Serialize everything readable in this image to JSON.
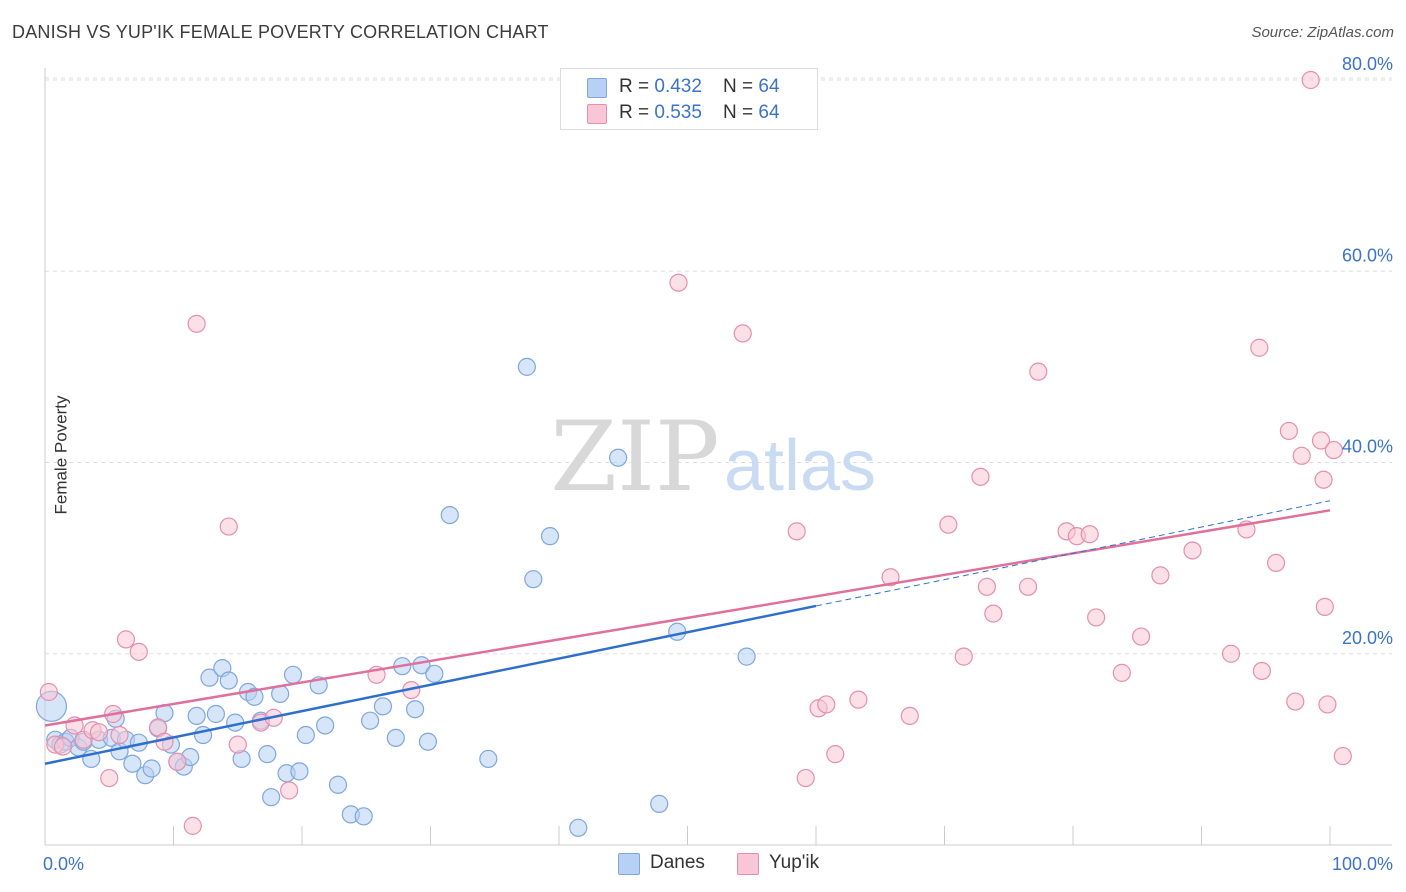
{
  "title": "DANISH VS YUP'IK FEMALE POVERTY CORRELATION CHART",
  "source": "Source: ZipAtlas.com",
  "watermark": {
    "zip": "ZIP",
    "atlas": "atlas"
  },
  "legend_top": {
    "rows": [
      {
        "r_label": "R = ",
        "r_value": "0.432",
        "n_label": "N = ",
        "n_value": "64"
      },
      {
        "r_label": "R = ",
        "r_value": "0.535",
        "n_label": "N = ",
        "n_value": "64"
      }
    ]
  },
  "colors": {
    "danes_fill": "#b7d0f3",
    "danes_stroke": "#7fa7dd",
    "danes_line": "#2f6fcc",
    "yupik_fill": "#f8c6d6",
    "yupik_stroke": "#e58fae",
    "yupik_line": "#e0709a",
    "axis_label": "#3a73c9",
    "grid": "#dddddd"
  },
  "chart_data": {
    "type": "scatter",
    "title": "DANISH VS YUP'IK FEMALE POVERTY CORRELATION CHART",
    "xlabel": "",
    "ylabel": "Female Poverty",
    "xlim": [
      0,
      100
    ],
    "ylim": [
      0,
      83
    ],
    "x_ticks": [
      "0.0%",
      "100.0%"
    ],
    "y_ticks": [
      {
        "value": 20,
        "label": "20.0%"
      },
      {
        "value": 40,
        "label": "40.0%"
      },
      {
        "value": 60,
        "label": "60.0%"
      },
      {
        "value": 80,
        "label": "80.0%"
      }
    ],
    "grid": true,
    "legend_position": "bottom",
    "series": [
      {
        "name": "Danes",
        "r": 0.432,
        "n": 64,
        "trend": {
          "x0": 0,
          "y0": 8.5,
          "x1": 60,
          "y1": 25.0,
          "dash_to_x": 100,
          "dash_to_y": 36.0
        },
        "points": [
          [
            0.5,
            14.5
          ],
          [
            0.8,
            11.0
          ],
          [
            1.2,
            10.5
          ],
          [
            1.6,
            10.8
          ],
          [
            2.0,
            11.2
          ],
          [
            2.6,
            10.2
          ],
          [
            3.0,
            10.8
          ],
          [
            3.6,
            9.0
          ],
          [
            4.2,
            11.0
          ],
          [
            5.2,
            11.2
          ],
          [
            5.5,
            13.2
          ],
          [
            5.8,
            9.8
          ],
          [
            6.3,
            11.0
          ],
          [
            6.8,
            8.5
          ],
          [
            7.3,
            10.7
          ],
          [
            7.8,
            7.3
          ],
          [
            8.3,
            8.0
          ],
          [
            8.8,
            12.2
          ],
          [
            9.3,
            13.8
          ],
          [
            9.8,
            10.5
          ],
          [
            10.3,
            8.7
          ],
          [
            10.8,
            8.2
          ],
          [
            11.3,
            9.2
          ],
          [
            11.8,
            13.5
          ],
          [
            12.3,
            11.5
          ],
          [
            12.8,
            17.5
          ],
          [
            13.3,
            13.7
          ],
          [
            13.8,
            18.5
          ],
          [
            14.3,
            17.2
          ],
          [
            14.8,
            12.8
          ],
          [
            15.3,
            9.0
          ],
          [
            15.8,
            16.0
          ],
          [
            16.3,
            15.5
          ],
          [
            16.8,
            13.0
          ],
          [
            17.3,
            9.5
          ],
          [
            17.6,
            5.0
          ],
          [
            18.3,
            15.8
          ],
          [
            18.8,
            7.5
          ],
          [
            19.3,
            17.8
          ],
          [
            19.8,
            7.7
          ],
          [
            20.3,
            11.5
          ],
          [
            21.3,
            16.7
          ],
          [
            21.8,
            12.5
          ],
          [
            22.8,
            6.3
          ],
          [
            23.8,
            3.2
          ],
          [
            24.8,
            3.0
          ],
          [
            25.3,
            13.0
          ],
          [
            26.3,
            14.5
          ],
          [
            27.3,
            11.2
          ],
          [
            27.8,
            18.7
          ],
          [
            28.8,
            14.2
          ],
          [
            29.3,
            18.8
          ],
          [
            29.8,
            10.8
          ],
          [
            30.3,
            17.9
          ],
          [
            31.5,
            34.5
          ],
          [
            34.5,
            9.0
          ],
          [
            37.5,
            50.0
          ],
          [
            38.0,
            27.8
          ],
          [
            39.3,
            32.3
          ],
          [
            41.5,
            1.8
          ],
          [
            44.6,
            40.5
          ],
          [
            47.8,
            4.3
          ],
          [
            49.2,
            22.3
          ],
          [
            54.6,
            19.7
          ]
        ]
      },
      {
        "name": "Yup'ik",
        "r": 0.535,
        "n": 64,
        "trend": {
          "x0": 0,
          "y0": 12.5,
          "x1": 100,
          "y1": 35.0
        },
        "points": [
          [
            0.3,
            16.0
          ],
          [
            0.8,
            10.5
          ],
          [
            1.4,
            10.3
          ],
          [
            2.3,
            12.5
          ],
          [
            3.0,
            11.0
          ],
          [
            3.7,
            12.0
          ],
          [
            4.2,
            11.8
          ],
          [
            5.0,
            7.0
          ],
          [
            5.3,
            13.7
          ],
          [
            5.8,
            11.5
          ],
          [
            6.3,
            21.5
          ],
          [
            7.3,
            20.2
          ],
          [
            8.8,
            12.3
          ],
          [
            9.3,
            10.8
          ],
          [
            10.3,
            8.7
          ],
          [
            11.5,
            2.0
          ],
          [
            11.8,
            54.5
          ],
          [
            14.3,
            33.3
          ],
          [
            15.0,
            10.5
          ],
          [
            16.8,
            12.8
          ],
          [
            17.8,
            13.3
          ],
          [
            19.0,
            5.7
          ],
          [
            25.8,
            17.8
          ],
          [
            28.5,
            16.2
          ],
          [
            49.3,
            58.8
          ],
          [
            54.3,
            53.5
          ],
          [
            58.5,
            32.8
          ],
          [
            59.2,
            7.0
          ],
          [
            60.2,
            14.3
          ],
          [
            60.8,
            14.7
          ],
          [
            61.5,
            9.5
          ],
          [
            63.3,
            15.2
          ],
          [
            65.8,
            28.0
          ],
          [
            67.3,
            13.5
          ],
          [
            70.3,
            33.5
          ],
          [
            71.5,
            19.7
          ],
          [
            72.8,
            38.5
          ],
          [
            73.3,
            27.0
          ],
          [
            73.8,
            24.2
          ],
          [
            76.5,
            27.0
          ],
          [
            77.3,
            49.5
          ],
          [
            79.5,
            32.8
          ],
          [
            80.3,
            32.3
          ],
          [
            81.3,
            32.5
          ],
          [
            81.8,
            23.8
          ],
          [
            83.8,
            18.0
          ],
          [
            85.3,
            21.8
          ],
          [
            86.8,
            28.2
          ],
          [
            89.3,
            30.8
          ],
          [
            92.3,
            20.0
          ],
          [
            93.5,
            33.0
          ],
          [
            94.5,
            52.0
          ],
          [
            94.7,
            18.2
          ],
          [
            95.8,
            29.5
          ],
          [
            96.8,
            43.3
          ],
          [
            97.3,
            15.0
          ],
          [
            97.8,
            40.7
          ],
          [
            98.5,
            80.0
          ],
          [
            99.3,
            42.3
          ],
          [
            99.5,
            38.2
          ],
          [
            99.8,
            14.7
          ],
          [
            100.3,
            41.3
          ],
          [
            101.0,
            9.3
          ],
          [
            99.6,
            24.9
          ]
        ]
      }
    ]
  }
}
